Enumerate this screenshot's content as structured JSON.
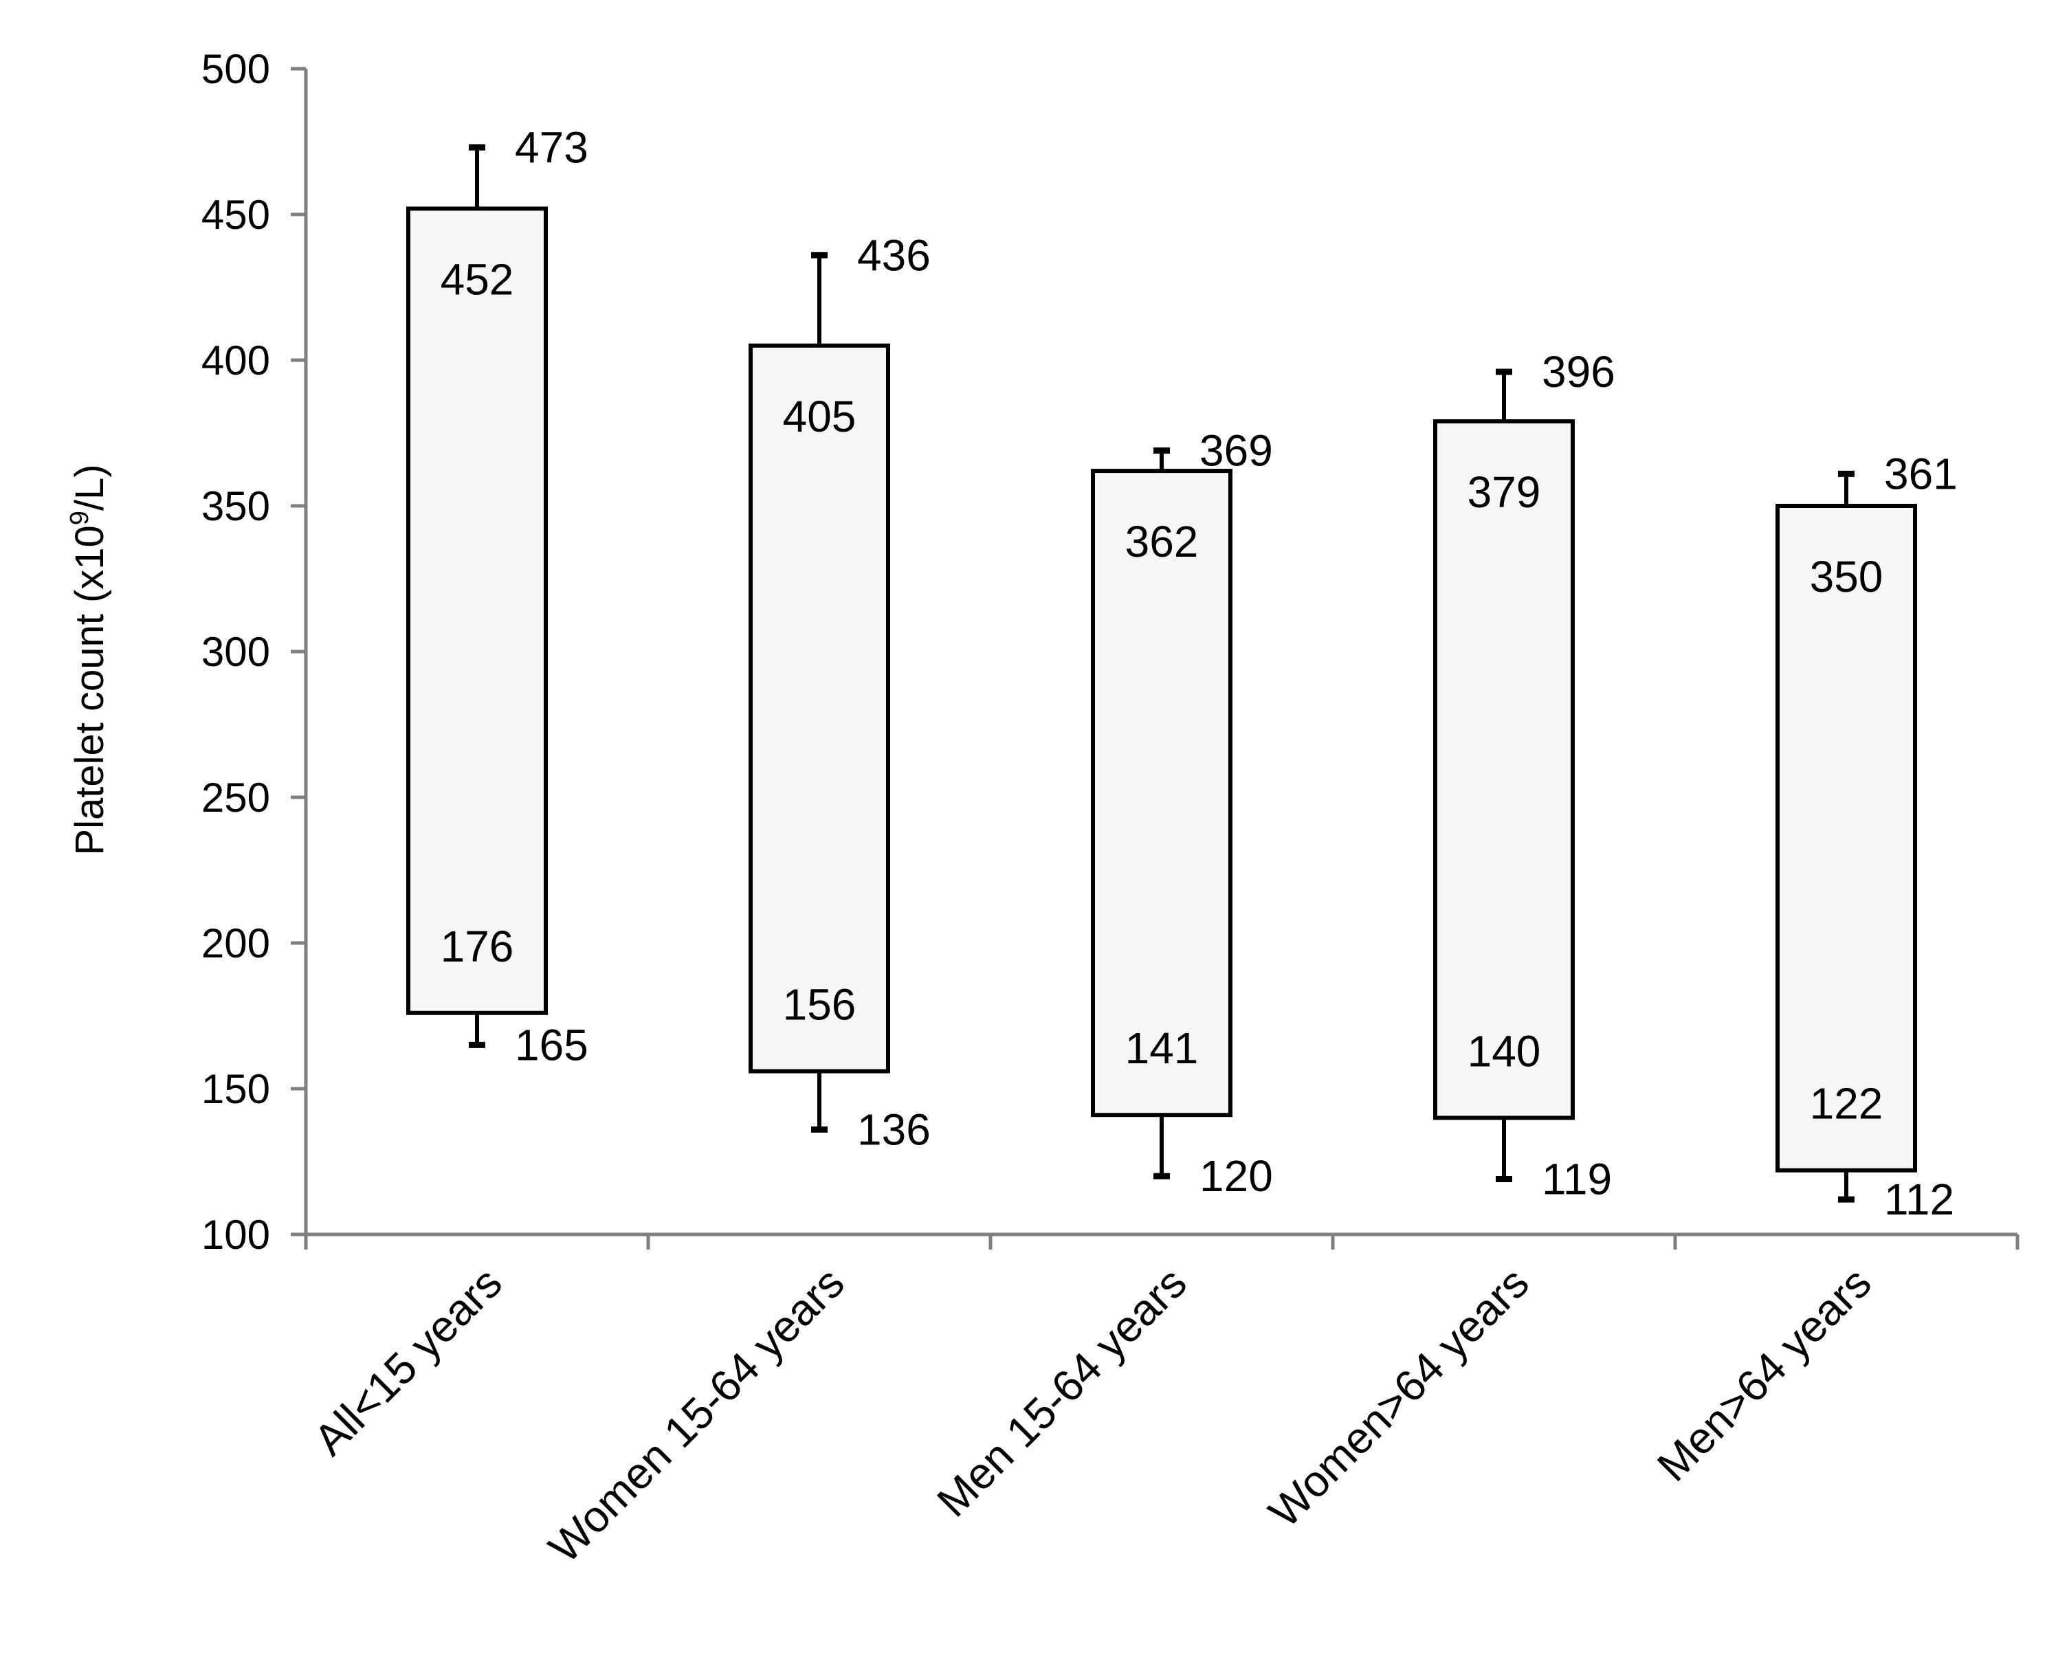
{
  "chart_data": {
    "type": "box",
    "ylabel": "Platelet count (x10",
    "ylabel_sup": "9",
    "ylabel_end": "/L)",
    "ylim": [
      100,
      500
    ],
    "yticks": [
      100,
      150,
      200,
      250,
      300,
      350,
      400,
      450,
      500
    ],
    "grid": false,
    "categories": [
      "All<15 years",
      "Women 15-64 years",
      "Men 15-64 years",
      "Women>64 years",
      "Men>64 years"
    ],
    "series": [
      {
        "category": "All<15 years",
        "whisker_high": 473,
        "box_high": 452,
        "box_low": 176,
        "whisker_low": 165
      },
      {
        "category": "Women 15-64 years",
        "whisker_high": 436,
        "box_high": 405,
        "box_low": 156,
        "whisker_low": 136
      },
      {
        "category": "Men 15-64 years",
        "whisker_high": 369,
        "box_high": 362,
        "box_low": 141,
        "whisker_low": 120
      },
      {
        "category": "Women>64 years",
        "whisker_high": 396,
        "box_high": 379,
        "box_low": 140,
        "whisker_low": 119
      },
      {
        "category": "Men>64 years",
        "whisker_high": 361,
        "box_high": 350,
        "box_low": 122,
        "whisker_low": 112
      }
    ]
  }
}
